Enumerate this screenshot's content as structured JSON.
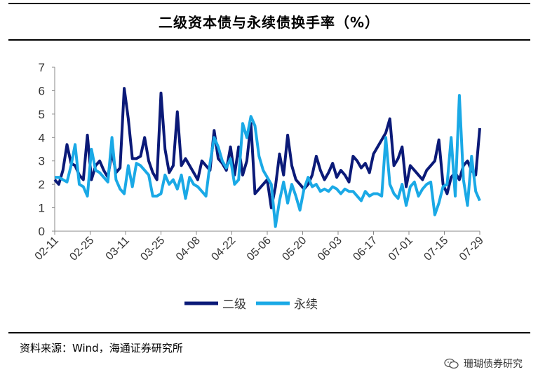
{
  "title": "二级资本债与永续债换手率（%）",
  "source": "资料来源：Wind，海通证券研究所",
  "watermark": "珊瑚债券研究",
  "colors": {
    "二级": "#0b1a78",
    "永续": "#1aa9e6",
    "axis": "#888888"
  },
  "chart_data": {
    "type": "line",
    "title": "二级资本债与永续债换手率（%）",
    "xlabel": "",
    "ylabel": "",
    "ylim": [
      0,
      7
    ],
    "yticks": [
      0,
      1,
      2,
      3,
      4,
      5,
      6,
      7
    ],
    "grid": false,
    "legend": "bottom",
    "x_labels": [
      "02-11",
      "02-25",
      "03-11",
      "03-25",
      "04-08",
      "04-22",
      "05-06",
      "05-20",
      "06-03",
      "06-17",
      "07-01",
      "07-15",
      "07-29"
    ],
    "series": [
      {
        "name": "二级",
        "color": "#0b1a78",
        "values": [
          2.2,
          2.0,
          2.6,
          3.7,
          2.9,
          2.8,
          2.4,
          2.2,
          4.1,
          2.2,
          2.8,
          3.0,
          2.6,
          2.3,
          3.4,
          2.5,
          2.7,
          6.1,
          4.8,
          3.1,
          3.1,
          3.2,
          4.0,
          3.0,
          2.5,
          2.2,
          5.9,
          3.5,
          2.5,
          2.8,
          5.1,
          2.8,
          3.1,
          2.8,
          2.5,
          2.2,
          3.0,
          2.8,
          2.6,
          4.3,
          3.1,
          2.9,
          2.6,
          3.6,
          2.4,
          3.6,
          2.4,
          3.0,
          4.6,
          1.6,
          1.8,
          2.0,
          2.2,
          1.0,
          1.9,
          3.3,
          2.4,
          4.1,
          2.8,
          2.2,
          2.0,
          1.8,
          2.0,
          2.4,
          3.2,
          2.6,
          2.2,
          2.5,
          2.9,
          2.3,
          2.6,
          2.4,
          2.1,
          3.2,
          3.0,
          2.7,
          2.9,
          2.5,
          3.3,
          3.6,
          3.9,
          4.2,
          4.8,
          2.8,
          3.1,
          3.6,
          1.9,
          2.8,
          2.6,
          2.4,
          2.2,
          2.6,
          2.8,
          3.0,
          3.9,
          2.0,
          1.6,
          2.3,
          2.5,
          2.2,
          2.8,
          3.0,
          2.6,
          2.4,
          4.4
        ]
      },
      {
        "name": "永续",
        "color": "#1aa9e6",
        "values": [
          2.3,
          2.3,
          2.2,
          2.1,
          2.8,
          3.7,
          2.0,
          1.9,
          1.5,
          3.5,
          2.6,
          2.5,
          2.3,
          2.1,
          4.0,
          2.2,
          1.8,
          1.6,
          2.8,
          1.9,
          2.9,
          2.8,
          2.6,
          2.4,
          1.5,
          1.5,
          1.6,
          2.4,
          2.0,
          2.2,
          1.8,
          2.4,
          1.4,
          2.3,
          2.0,
          1.9,
          1.7,
          1.5,
          2.9,
          4.0,
          3.6,
          3.0,
          2.7,
          3.1,
          2.0,
          2.2,
          4.6,
          4.0,
          4.9,
          4.5,
          3.2,
          2.6,
          2.3,
          2.0,
          0.2,
          1.3,
          2.1,
          1.2,
          2.0,
          1.5,
          0.9,
          1.8,
          2.3,
          1.9,
          2.0,
          1.7,
          1.8,
          1.7,
          1.9,
          1.8,
          1.6,
          1.8,
          1.7,
          1.7,
          1.5,
          1.3,
          1.7,
          1.5,
          1.6,
          1.6,
          1.5,
          4.0,
          2.0,
          1.6,
          1.4,
          2.0,
          1.1,
          1.9,
          2.1,
          1.5,
          1.8,
          2.0,
          2.1,
          0.7,
          1.2,
          1.9,
          2.0,
          4.0,
          1.5,
          5.8,
          2.2,
          1.1,
          3.2,
          1.7,
          1.3
        ]
      }
    ]
  }
}
